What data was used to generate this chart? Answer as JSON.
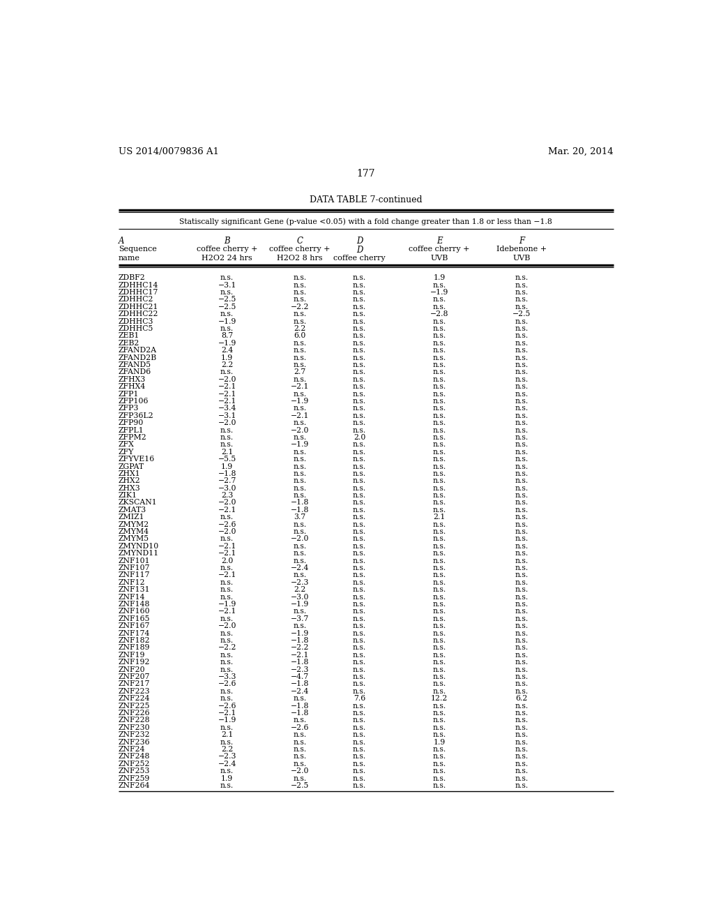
{
  "page_left": "US 2014/0079836 A1",
  "page_right": "Mar. 20, 2014",
  "page_num": "177",
  "table_title": "DATA TABLE 7-continued",
  "subtitle": "Statiscally significant Gene (p-value <0.05) with a fold change greater than 1.8 or less than −1.8",
  "rows": [
    [
      "ZDBF2",
      "n.s.",
      "n.s.",
      "n.s.",
      "1.9",
      "n.s."
    ],
    [
      "ZDHHC14",
      "−3.1",
      "n.s.",
      "n.s.",
      "n.s.",
      "n.s."
    ],
    [
      "ZDHHC17",
      "n.s.",
      "n.s.",
      "n.s.",
      "−1.9",
      "n.s."
    ],
    [
      "ZDHHC2",
      "−2.5",
      "n.s.",
      "n.s.",
      "n.s.",
      "n.s."
    ],
    [
      "ZDHHC21",
      "−2.5",
      "−2.2",
      "n.s.",
      "n.s.",
      "n.s."
    ],
    [
      "ZDHHC22",
      "n.s.",
      "n.s.",
      "n.s.",
      "−2.8",
      "−2.5"
    ],
    [
      "ZDHHC3",
      "−1.9",
      "n.s.",
      "n.s.",
      "n.s.",
      "n.s."
    ],
    [
      "ZDHHC5",
      "n.s.",
      "2.2",
      "n.s.",
      "n.s.",
      "n.s."
    ],
    [
      "ZEB1",
      "8.7",
      "6.0",
      "n.s.",
      "n.s.",
      "n.s."
    ],
    [
      "ZEB2",
      "−1.9",
      "n.s.",
      "n.s.",
      "n.s.",
      "n.s."
    ],
    [
      "ZFAND2A",
      "2.4",
      "n.s.",
      "n.s.",
      "n.s.",
      "n.s."
    ],
    [
      "ZFAND2B",
      "1.9",
      "n.s.",
      "n.s.",
      "n.s.",
      "n.s."
    ],
    [
      "ZFAND5",
      "2.2",
      "n.s.",
      "n.s.",
      "n.s.",
      "n.s."
    ],
    [
      "ZFAND6",
      "n.s.",
      "2.7",
      "n.s.",
      "n.s.",
      "n.s."
    ],
    [
      "ZFHX3",
      "−2.0",
      "n.s.",
      "n.s.",
      "n.s.",
      "n.s."
    ],
    [
      "ZFHX4",
      "−2.1",
      "−2.1",
      "n.s.",
      "n.s.",
      "n.s."
    ],
    [
      "ZFP1",
      "−2.1",
      "n.s.",
      "n.s.",
      "n.s.",
      "n.s."
    ],
    [
      "ZFP106",
      "−2.1",
      "−1.9",
      "n.s.",
      "n.s.",
      "n.s."
    ],
    [
      "ZFP3",
      "−3.4",
      "n.s.",
      "n.s.",
      "n.s.",
      "n.s."
    ],
    [
      "ZFP36L2",
      "−3.1",
      "−2.1",
      "n.s.",
      "n.s.",
      "n.s."
    ],
    [
      "ZFP90",
      "−2.0",
      "n.s.",
      "n.s.",
      "n.s.",
      "n.s."
    ],
    [
      "ZFPL1",
      "n.s.",
      "−2.0",
      "n.s.",
      "n.s.",
      "n.s."
    ],
    [
      "ZFPM2",
      "n.s.",
      "n.s.",
      "2.0",
      "n.s.",
      "n.s."
    ],
    [
      "ZFX",
      "n.s.",
      "−1.9",
      "n.s.",
      "n.s.",
      "n.s."
    ],
    [
      "ZFY",
      "2.1",
      "n.s.",
      "n.s.",
      "n.s.",
      "n.s."
    ],
    [
      "ZFYVE16",
      "−5.5",
      "n.s.",
      "n.s.",
      "n.s.",
      "n.s."
    ],
    [
      "ZGPAT",
      "1.9",
      "n.s.",
      "n.s.",
      "n.s.",
      "n.s."
    ],
    [
      "ZHX1",
      "−1.8",
      "n.s.",
      "n.s.",
      "n.s.",
      "n.s."
    ],
    [
      "ZHX2",
      "−2.7",
      "n.s.",
      "n.s.",
      "n.s.",
      "n.s."
    ],
    [
      "ZHX3",
      "−3.0",
      "n.s.",
      "n.s.",
      "n.s.",
      "n.s."
    ],
    [
      "ZIK1",
      "2.3",
      "n.s.",
      "n.s.",
      "n.s.",
      "n.s."
    ],
    [
      "ZKSCAN1",
      "−2.0",
      "−1.8",
      "n.s.",
      "n.s.",
      "n.s."
    ],
    [
      "ZMAT3",
      "−2.1",
      "−1.8",
      "n.s.",
      "n.s.",
      "n.s."
    ],
    [
      "ZMIZ1",
      "n.s.",
      "3.7",
      "n.s.",
      "2.1",
      "n.s."
    ],
    [
      "ZMYM2",
      "−2.6",
      "n.s.",
      "n.s.",
      "n.s.",
      "n.s."
    ],
    [
      "ZMYM4",
      "−2.0",
      "n.s.",
      "n.s.",
      "n.s.",
      "n.s."
    ],
    [
      "ZMYM5",
      "n.s.",
      "−2.0",
      "n.s.",
      "n.s.",
      "n.s."
    ],
    [
      "ZMYND10",
      "−2.1",
      "n.s.",
      "n.s.",
      "n.s.",
      "n.s."
    ],
    [
      "ZMYND11",
      "−2.1",
      "n.s.",
      "n.s.",
      "n.s.",
      "n.s."
    ],
    [
      "ZNF101",
      "2.0",
      "n.s.",
      "n.s.",
      "n.s.",
      "n.s."
    ],
    [
      "ZNF107",
      "n.s.",
      "−2.4",
      "n.s.",
      "n.s.",
      "n.s."
    ],
    [
      "ZNF117",
      "−2.1",
      "n.s.",
      "n.s.",
      "n.s.",
      "n.s."
    ],
    [
      "ZNF12",
      "n.s.",
      "−2.3",
      "n.s.",
      "n.s.",
      "n.s."
    ],
    [
      "ZNF131",
      "n.s.",
      "2.2",
      "n.s.",
      "n.s.",
      "n.s."
    ],
    [
      "ZNF14",
      "n.s.",
      "−3.0",
      "n.s.",
      "n.s.",
      "n.s."
    ],
    [
      "ZNF148",
      "−1.9",
      "−1.9",
      "n.s.",
      "n.s.",
      "n.s."
    ],
    [
      "ZNF160",
      "−2.1",
      "n.s.",
      "n.s.",
      "n.s.",
      "n.s."
    ],
    [
      "ZNF165",
      "n.s.",
      "−3.7",
      "n.s.",
      "n.s.",
      "n.s."
    ],
    [
      "ZNF167",
      "−2.0",
      "n.s.",
      "n.s.",
      "n.s.",
      "n.s."
    ],
    [
      "ZNF174",
      "n.s.",
      "−1.9",
      "n.s.",
      "n.s.",
      "n.s."
    ],
    [
      "ZNF182",
      "n.s.",
      "−1.8",
      "n.s.",
      "n.s.",
      "n.s."
    ],
    [
      "ZNF189",
      "−2.2",
      "−2.2",
      "n.s.",
      "n.s.",
      "n.s."
    ],
    [
      "ZNF19",
      "n.s.",
      "−2.1",
      "n.s.",
      "n.s.",
      "n.s."
    ],
    [
      "ZNF192",
      "n.s.",
      "−1.8",
      "n.s.",
      "n.s.",
      "n.s."
    ],
    [
      "ZNF20",
      "n.s.",
      "−2.3",
      "n.s.",
      "n.s.",
      "n.s."
    ],
    [
      "ZNF207",
      "−3.3",
      "−4.7",
      "n.s.",
      "n.s.",
      "n.s."
    ],
    [
      "ZNF217",
      "−2.6",
      "−1.8",
      "n.s.",
      "n.s.",
      "n.s."
    ],
    [
      "ZNF223",
      "n.s.",
      "−2.4",
      "n.s.",
      "n.s.",
      "n.s."
    ],
    [
      "ZNF224",
      "n.s.",
      "n.s.",
      "7.6",
      "12.2",
      "6.2"
    ],
    [
      "ZNF225",
      "−2.6",
      "−1.8",
      "n.s.",
      "n.s.",
      "n.s."
    ],
    [
      "ZNF226",
      "−2.1",
      "−1.8",
      "n.s.",
      "n.s.",
      "n.s."
    ],
    [
      "ZNF228",
      "−1.9",
      "n.s.",
      "n.s.",
      "n.s.",
      "n.s."
    ],
    [
      "ZNF230",
      "n.s.",
      "−2.6",
      "n.s.",
      "n.s.",
      "n.s."
    ],
    [
      "ZNF232",
      "2.1",
      "n.s.",
      "n.s.",
      "n.s.",
      "n.s."
    ],
    [
      "ZNF236",
      "n.s.",
      "n.s.",
      "n.s.",
      "1.9",
      "n.s."
    ],
    [
      "ZNF24",
      "2.2",
      "n.s.",
      "n.s.",
      "n.s.",
      "n.s."
    ],
    [
      "ZNF248",
      "−2.3",
      "n.s.",
      "n.s.",
      "n.s.",
      "n.s."
    ],
    [
      "ZNF252",
      "−2.4",
      "n.s.",
      "n.s.",
      "n.s.",
      "n.s."
    ],
    [
      "ZNF253",
      "n.s.",
      "−2.0",
      "n.s.",
      "n.s.",
      "n.s."
    ],
    [
      "ZNF259",
      "1.9",
      "n.s.",
      "n.s.",
      "n.s.",
      "n.s."
    ],
    [
      "ZNF264",
      "n.s.",
      "−2.5",
      "n.s.",
      "n.s.",
      "n.s."
    ]
  ]
}
